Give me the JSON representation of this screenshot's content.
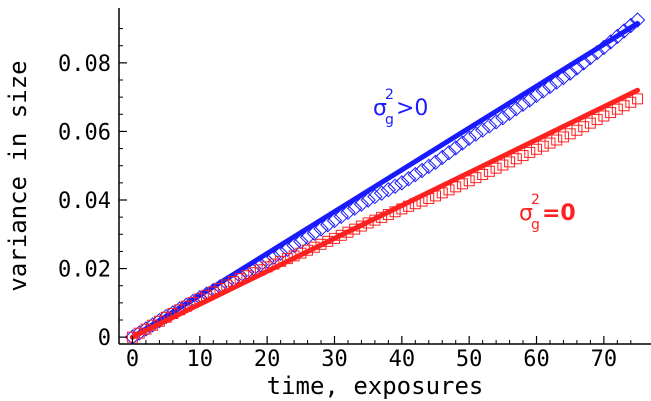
{
  "chart_data": {
    "type": "scatter",
    "xlabel": "time, exposures",
    "ylabel": "variance in size",
    "xlim": [
      -2,
      77
    ],
    "ylim": [
      -0.002,
      0.096
    ],
    "x_ticks": [
      0,
      10,
      20,
      30,
      40,
      50,
      60,
      70
    ],
    "x_tick_labels": [
      "0",
      "10",
      "20",
      "30",
      "40",
      "50",
      "60",
      "70"
    ],
    "y_ticks": [
      0,
      0.02,
      0.04,
      0.06,
      0.08
    ],
    "y_tick_labels": [
      "0",
      "0.02",
      "0.04",
      "0.06",
      "0.08"
    ],
    "grid": false,
    "series": [
      {
        "key": "gt",
        "label_main": "σ",
        "label_sub": "g",
        "label_sup": "2",
        "label_rel": ">0",
        "color": "#1a1aff",
        "marker": "diamond",
        "fit": {
          "x": [
            0,
            75
          ],
          "y": [
            0.0,
            0.0915
          ]
        },
        "x": [
          0,
          5,
          10,
          15,
          20,
          25,
          30,
          35,
          40,
          45,
          50,
          55,
          60,
          65,
          70,
          75
        ],
        "y": [
          0.0,
          0.006,
          0.0115,
          0.0168,
          0.0222,
          0.0279,
          0.034,
          0.04,
          0.045,
          0.051,
          0.058,
          0.064,
          0.0705,
          0.077,
          0.0845,
          0.0925
        ]
      },
      {
        "key": "eq",
        "label_main": "σ",
        "label_sub": "g",
        "label_sup": "2",
        "label_rel": "=0",
        "color": "#ff2020",
        "marker": "square",
        "fit": {
          "x": [
            0,
            75
          ],
          "y": [
            0.0,
            0.072
          ]
        },
        "x": [
          0,
          5,
          10,
          15,
          20,
          25,
          30,
          35,
          40,
          45,
          50,
          55,
          60,
          65,
          70,
          75
        ],
        "y": [
          0.0,
          0.0058,
          0.0112,
          0.0162,
          0.0205,
          0.0245,
          0.0288,
          0.0333,
          0.0374,
          0.0412,
          0.0456,
          0.0502,
          0.0548,
          0.0593,
          0.0645,
          0.0695
        ]
      }
    ]
  }
}
